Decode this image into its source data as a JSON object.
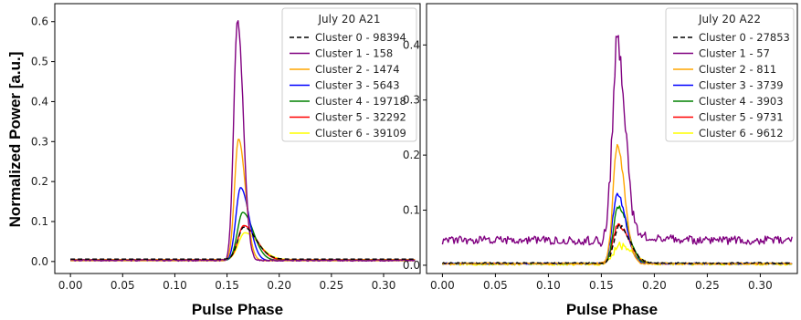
{
  "figure": {
    "ylabel": "Normalized Power [a.u.]"
  },
  "chart_data": [
    {
      "type": "line",
      "xlabel": "Pulse Phase",
      "ylabel": "Normalized Power [a.u.]",
      "xlim": [
        -0.015,
        0.335
      ],
      "ylim": [
        -0.03,
        0.645
      ],
      "xticks": [
        "0.00",
        "0.05",
        "0.10",
        "0.15",
        "0.20",
        "0.25",
        "0.30"
      ],
      "xtick_values": [
        0,
        0.05,
        0.1,
        0.15,
        0.2,
        0.25,
        0.3
      ],
      "yticks": [
        "0.0",
        "0.1",
        "0.2",
        "0.3",
        "0.4",
        "0.5",
        "0.6"
      ],
      "ytick_values": [
        0,
        0.1,
        0.2,
        0.3,
        0.4,
        0.5,
        0.6
      ],
      "legend_title": "July 20 A21",
      "legend_position": "top-right",
      "grid": false,
      "series": [
        {
          "name": "Cluster 0 - 98394",
          "color": "#000000",
          "dash": true,
          "baseline": 0.006,
          "peak": 0.086,
          "center": 0.166,
          "width_left": 0.0055,
          "width_right": 0.012,
          "noise": 0
        },
        {
          "name": "Cluster 1 - 158",
          "color": "#800080",
          "dash": false,
          "baseline": 0.003,
          "peak": 0.61,
          "center": 0.16,
          "width_left": 0.0035,
          "width_right": 0.0055,
          "noise": 0.002
        },
        {
          "name": "Cluster 2 - 1474",
          "color": "#FFA500",
          "dash": false,
          "baseline": 0.002,
          "peak": 0.307,
          "center": 0.161,
          "width_left": 0.0038,
          "width_right": 0.0065,
          "noise": 0
        },
        {
          "name": "Cluster 3 - 5643",
          "color": "#0000FF",
          "dash": false,
          "baseline": 0.002,
          "peak": 0.185,
          "center": 0.163,
          "width_left": 0.0045,
          "width_right": 0.008,
          "noise": 0
        },
        {
          "name": "Cluster 4 - 19718",
          "color": "#008000",
          "dash": false,
          "baseline": 0.003,
          "peak": 0.123,
          "center": 0.165,
          "width_left": 0.005,
          "width_right": 0.01,
          "noise": 0
        },
        {
          "name": "Cluster 5 - 32292",
          "color": "#FF0000",
          "dash": false,
          "baseline": 0.004,
          "peak": 0.09,
          "center": 0.166,
          "width_left": 0.0055,
          "width_right": 0.012,
          "noise": 0
        },
        {
          "name": "Cluster 6 - 39109",
          "color": "#FFFF00",
          "dash": false,
          "baseline": 0.005,
          "peak": 0.072,
          "center": 0.167,
          "width_left": 0.006,
          "width_right": 0.013,
          "noise": 0
        }
      ]
    },
    {
      "type": "line",
      "xlabel": "Pulse Phase",
      "ylabel": "",
      "xlim": [
        -0.015,
        0.335
      ],
      "ylim": [
        -0.015,
        0.475
      ],
      "xticks": [
        "0.00",
        "0.05",
        "0.10",
        "0.15",
        "0.20",
        "0.25",
        "0.30"
      ],
      "xtick_values": [
        0,
        0.05,
        0.1,
        0.15,
        0.2,
        0.25,
        0.3
      ],
      "yticks": [
        "0.0",
        "0.1",
        "0.2",
        "0.3",
        "0.4"
      ],
      "ytick_values": [
        0,
        0.1,
        0.2,
        0.3,
        0.4
      ],
      "legend_title": "July 20 A22",
      "legend_position": "top-right",
      "grid": false,
      "series": [
        {
          "name": "Cluster 0 - 27853",
          "color": "#000000",
          "dash": true,
          "baseline": 0.004,
          "peak": 0.07,
          "center": 0.167,
          "width_left": 0.005,
          "width_right": 0.01,
          "noise": 0.001
        },
        {
          "name": "Cluster 1 - 57",
          "color": "#800080",
          "dash": false,
          "baseline": 0.045,
          "peak": 0.405,
          "center": 0.165,
          "width_left": 0.0045,
          "width_right": 0.007,
          "noise": 0.008,
          "tail_amp": 0.028,
          "tail_width": 0.02
        },
        {
          "name": "Cluster 2 - 811",
          "color": "#FFA500",
          "dash": false,
          "baseline": 0.003,
          "peak": 0.218,
          "center": 0.165,
          "width_left": 0.004,
          "width_right": 0.007,
          "noise": 0.0015
        },
        {
          "name": "Cluster 3 - 3739",
          "color": "#0000FF",
          "dash": false,
          "baseline": 0.003,
          "peak": 0.13,
          "center": 0.165,
          "width_left": 0.0045,
          "width_right": 0.008,
          "noise": 0.0012
        },
        {
          "name": "Cluster 4 - 3903",
          "color": "#008000",
          "dash": false,
          "baseline": 0.003,
          "peak": 0.108,
          "center": 0.166,
          "width_left": 0.0045,
          "width_right": 0.009,
          "noise": 0.0012
        },
        {
          "name": "Cluster 5 - 9731",
          "color": "#FF0000",
          "dash": false,
          "baseline": 0.003,
          "peak": 0.073,
          "center": 0.166,
          "width_left": 0.005,
          "width_right": 0.01,
          "noise": 0.001
        },
        {
          "name": "Cluster 6 - 9612",
          "color": "#FFFF00",
          "dash": false,
          "baseline": 0.002,
          "peak": 0.036,
          "center": 0.167,
          "width_left": 0.006,
          "width_right": 0.012,
          "noise": 0.002
        }
      ]
    }
  ]
}
